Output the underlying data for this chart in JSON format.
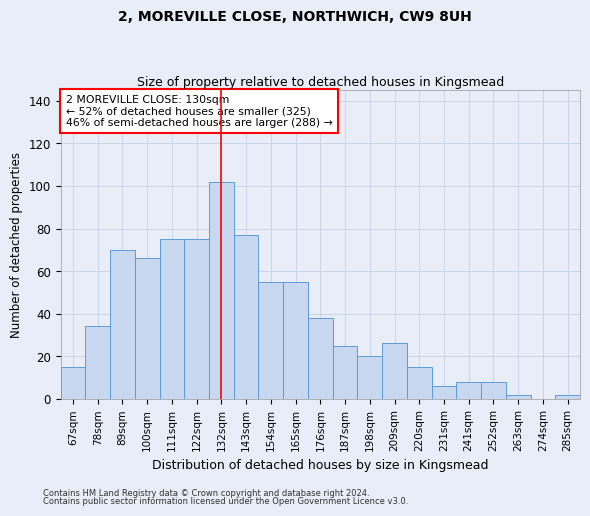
{
  "title1": "2, MOREVILLE CLOSE, NORTHWICH, CW9 8UH",
  "title2": "Size of property relative to detached houses in Kingsmead",
  "xlabel": "Distribution of detached houses by size in Kingsmead",
  "ylabel": "Number of detached properties",
  "categories": [
    "67sqm",
    "78sqm",
    "89sqm",
    "100sqm",
    "111sqm",
    "122sqm",
    "132sqm",
    "143sqm",
    "154sqm",
    "165sqm",
    "176sqm",
    "187sqm",
    "198sqm",
    "209sqm",
    "220sqm",
    "231sqm",
    "241sqm",
    "252sqm",
    "263sqm",
    "274sqm",
    "285sqm"
  ],
  "values": [
    15,
    34,
    70,
    66,
    75,
    75,
    102,
    77,
    55,
    55,
    38,
    25,
    20,
    26,
    15,
    6,
    8,
    8,
    2,
    0,
    2
  ],
  "bar_color": "#c8d8f0",
  "bar_edge_color": "#5b9bd5",
  "vline_x_index": 6,
  "vline_color": "red",
  "annotation_text": "2 MOREVILLE CLOSE: 130sqm\n← 52% of detached houses are smaller (325)\n46% of semi-detached houses are larger (288) →",
  "annotation_box_color": "white",
  "annotation_box_edge_color": "red",
  "ylim": [
    0,
    145
  ],
  "yticks": [
    0,
    20,
    40,
    60,
    80,
    100,
    120,
    140
  ],
  "grid_color": "#c8d4e8",
  "background_color": "#e8edf8",
  "footnote1": "Contains HM Land Registry data © Crown copyright and database right 2024.",
  "footnote2": "Contains public sector information licensed under the Open Government Licence v3.0."
}
